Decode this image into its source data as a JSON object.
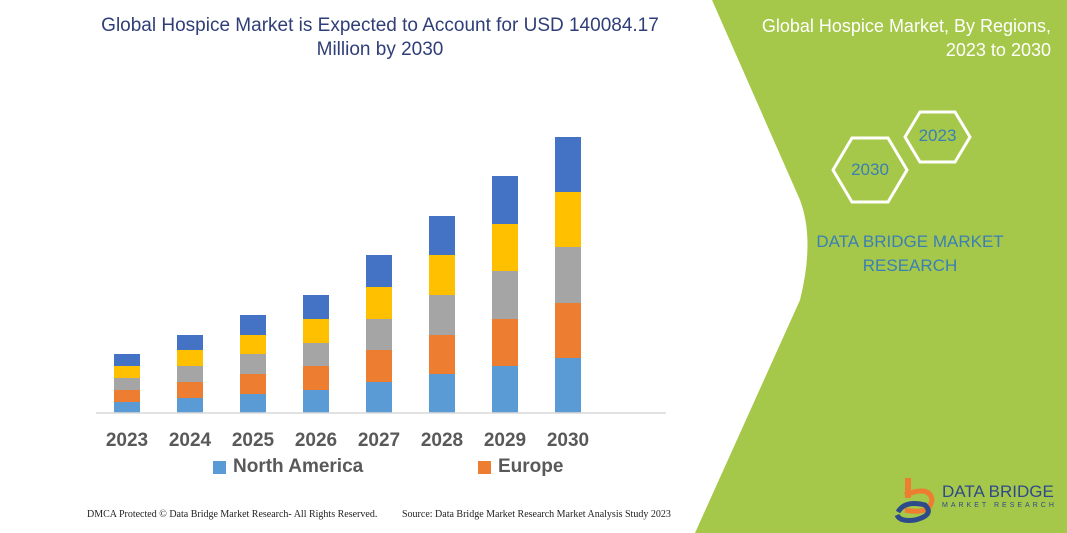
{
  "title": "Global Hospice Market is Expected to Account for USD 140084.17 Million by 2030",
  "side": {
    "title_line1": "Global Hospice Market, By Regions,",
    "title_line2": "2023 to 2030",
    "hex_a": "2023",
    "hex_b": "2030",
    "brand": "DATA BRIDGE MARKET RESEARCH",
    "logo_text": "DATA BRIDGE",
    "logo_sub": "MARKET RESEARCH",
    "green": "#a5c84a"
  },
  "footer": {
    "left": "DMCA Protected © Data Bridge Market Research-  All Rights Reserved.",
    "right": "Source: Data Bridge Market Research  Market Analysis Study 2023"
  },
  "chart_data": {
    "type": "bar",
    "stacked": true,
    "categories": [
      "2023",
      "2024",
      "2025",
      "2026",
      "2027",
      "2028",
      "2029",
      "2030"
    ],
    "series": [
      {
        "name": "North America",
        "color": "#5b9bd5",
        "values": [
          11,
          15,
          19,
          23,
          31,
          39,
          47,
          55
        ]
      },
      {
        "name": "Europe",
        "color": "#ed7d31",
        "values": [
          12,
          16,
          20,
          24,
          32,
          39,
          47,
          55
        ]
      },
      {
        "color": "#a5a5a5",
        "values": [
          12,
          16,
          20,
          23,
          31,
          40,
          48,
          56
        ]
      },
      {
        "color": "#ffc000",
        "values": [
          12,
          16,
          19,
          24,
          32,
          40,
          47,
          55
        ]
      },
      {
        "color": "#4472c4",
        "values": [
          12,
          15,
          20,
          24,
          32,
          39,
          48,
          55
        ]
      }
    ],
    "yaxis_shown": false,
    "grid": false,
    "legend": "bottom"
  }
}
